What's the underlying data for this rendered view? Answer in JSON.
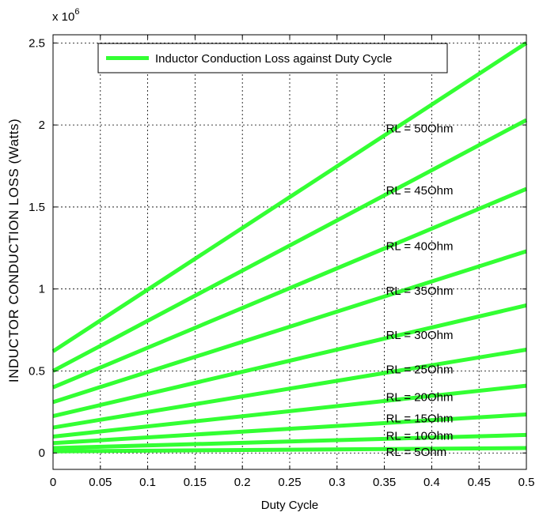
{
  "chart_data": {
    "type": "line",
    "xlabel": "Duty Cycle",
    "ylabel": "INDUCTOR CONDUCTION LOSS (Watts)",
    "y_exponent_label": "x 10",
    "y_exponent_power": "6",
    "xlim": [
      0,
      0.5
    ],
    "ylim": [
      -0.1,
      2.55
    ],
    "x_ticks": [
      0,
      0.05,
      0.1,
      0.15,
      0.2,
      0.25,
      0.3,
      0.35,
      0.4,
      0.45,
      0.5
    ],
    "x_tick_labels": [
      "0",
      "0.05",
      "0.1",
      "0.15",
      "0.2",
      "0.25",
      "0.3",
      "0.35",
      "0.4",
      "0.45",
      "0.5"
    ],
    "y_ticks": [
      0,
      0.5,
      1,
      1.5,
      2,
      2.5
    ],
    "y_tick_labels": [
      "0",
      "0.5",
      "1",
      "1.5",
      "2",
      "2.5"
    ],
    "grid": true,
    "legend": {
      "placement": "top",
      "entries": [
        "Inductor Conduction Loss against Duty Cycle"
      ]
    },
    "line_color": "#33ff33",
    "series": [
      {
        "name": "RL = 50Ohm",
        "x": [
          0,
          0.5
        ],
        "y": [
          0.62,
          2.5
        ],
        "label_at": [
          0.35,
          1.98
        ]
      },
      {
        "name": "RL = 45Ohm",
        "x": [
          0,
          0.5
        ],
        "y": [
          0.5,
          2.03
        ],
        "label_at": [
          0.35,
          1.6
        ]
      },
      {
        "name": "RL = 40Ohm",
        "x": [
          0,
          0.5
        ],
        "y": [
          0.4,
          1.61
        ],
        "label_at": [
          0.35,
          1.26
        ]
      },
      {
        "name": "RL = 35Ohm",
        "x": [
          0,
          0.5
        ],
        "y": [
          0.31,
          1.23
        ],
        "label_at": [
          0.35,
          0.99
        ]
      },
      {
        "name": "RL = 30Ohm",
        "x": [
          0,
          0.5
        ],
        "y": [
          0.225,
          0.9
        ],
        "label_at": [
          0.35,
          0.72
        ]
      },
      {
        "name": "RL = 25Ohm",
        "x": [
          0,
          0.5
        ],
        "y": [
          0.155,
          0.63
        ],
        "label_at": [
          0.35,
          0.51
        ]
      },
      {
        "name": "RL = 20Ohm",
        "x": [
          0,
          0.5
        ],
        "y": [
          0.1,
          0.41
        ],
        "label_at": [
          0.35,
          0.34
        ]
      },
      {
        "name": "RL = 15Ohm",
        "x": [
          0,
          0.5
        ],
        "y": [
          0.06,
          0.235
        ],
        "label_at": [
          0.35,
          0.21
        ]
      },
      {
        "name": "RL = 10Ohm",
        "x": [
          0,
          0.5
        ],
        "y": [
          0.03,
          0.11
        ],
        "label_at": [
          0.35,
          0.105
        ]
      },
      {
        "name": "RL = 5Ohm",
        "x": [
          0,
          0.5
        ],
        "y": [
          0.01,
          0.03
        ],
        "label_at": [
          0.35,
          0.005
        ]
      }
    ]
  }
}
